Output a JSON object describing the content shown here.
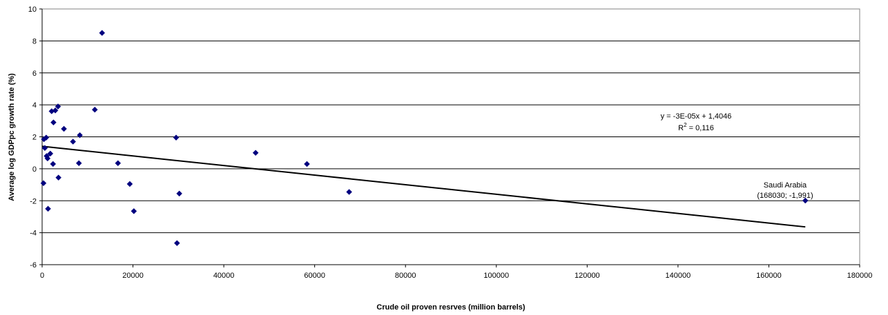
{
  "chart_data": {
    "type": "scatter",
    "title": "",
    "xlabel": "Crude oil proven resrves (million barrels)",
    "ylabel": "Average log GDPpc growth rate (%)",
    "xlim": [
      0,
      180000
    ],
    "ylim": [
      -6,
      10
    ],
    "xticks": [
      0,
      20000,
      40000,
      60000,
      80000,
      100000,
      120000,
      140000,
      160000,
      180000
    ],
    "xtick_labels": [
      "0",
      "20000",
      "40000",
      "60000",
      "80000",
      "100000",
      "120000",
      "140000",
      "160000",
      "180000"
    ],
    "yticks": [
      -6,
      -4,
      -2,
      0,
      2,
      4,
      6,
      8,
      10
    ],
    "ytick_labels": [
      "-6",
      "-4",
      "-2",
      "0",
      "2",
      "4",
      "6",
      "8",
      "10"
    ],
    "grid": "horizontal",
    "marker_color": "#00007f",
    "points": [
      {
        "x": 300,
        "y": -0.9
      },
      {
        "x": 400,
        "y": 1.85
      },
      {
        "x": 600,
        "y": 1.3
      },
      {
        "x": 900,
        "y": 1.95
      },
      {
        "x": 1000,
        "y": 0.8
      },
      {
        "x": 1200,
        "y": 0.65
      },
      {
        "x": 1300,
        "y": -2.5
      },
      {
        "x": 1800,
        "y": 0.95
      },
      {
        "x": 2100,
        "y": 3.6
      },
      {
        "x": 2400,
        "y": 0.3
      },
      {
        "x": 2500,
        "y": 2.9
      },
      {
        "x": 2900,
        "y": 3.65
      },
      {
        "x": 3500,
        "y": 3.9
      },
      {
        "x": 3600,
        "y": -0.55
      },
      {
        "x": 4800,
        "y": 2.5
      },
      {
        "x": 6800,
        "y": 1.7
      },
      {
        "x": 8100,
        "y": 0.35
      },
      {
        "x": 8300,
        "y": 2.1
      },
      {
        "x": 11600,
        "y": 3.7
      },
      {
        "x": 13200,
        "y": 8.5
      },
      {
        "x": 16700,
        "y": 0.35
      },
      {
        "x": 19300,
        "y": -0.95
      },
      {
        "x": 20200,
        "y": -2.65
      },
      {
        "x": 29500,
        "y": 1.95
      },
      {
        "x": 29700,
        "y": -4.65
      },
      {
        "x": 30200,
        "y": -1.55
      },
      {
        "x": 47000,
        "y": 1.0
      },
      {
        "x": 58300,
        "y": 0.3
      },
      {
        "x": 67600,
        "y": -1.45
      },
      {
        "x": 168030,
        "y": -1.991
      }
    ],
    "trendline": {
      "slope": -3e-05,
      "intercept": 1.4046,
      "x_range": [
        0,
        168030
      ],
      "equation_label": "y = -3E-05x + 1,4046",
      "r2_prefix": "R",
      "r2_sup": "2",
      "r2_suffix": " = 0,116"
    },
    "annotation": {
      "line1": "Saudi Arabia",
      "line2": "(168030; -1,991)"
    }
  }
}
